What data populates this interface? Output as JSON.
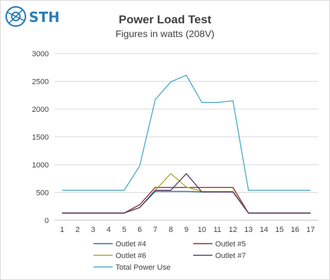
{
  "logo": {
    "text": "STH"
  },
  "chart_data": {
    "type": "line",
    "title": "Power Load Test",
    "subtitle": "Figures in watts (208V)",
    "xlabel": "",
    "ylabel": "",
    "x": [
      1,
      2,
      3,
      4,
      5,
      6,
      7,
      8,
      9,
      10,
      11,
      12,
      13,
      14,
      15,
      16,
      17
    ],
    "ylim": [
      0,
      3000
    ],
    "yticks": [
      0,
      500,
      1000,
      1500,
      2000,
      2500,
      3000
    ],
    "grid": true,
    "legend": "bottom",
    "series": [
      {
        "name": "Outlet #4",
        "color": "#1f7391",
        "values": [
          130,
          130,
          130,
          130,
          130,
          230,
          520,
          520,
          520,
          510,
          510,
          510,
          130,
          130,
          130,
          130,
          130
        ]
      },
      {
        "name": "Outlet #5",
        "color": "#8b2e2a",
        "values": [
          130,
          130,
          130,
          130,
          130,
          280,
          590,
          590,
          590,
          590,
          590,
          590,
          130,
          130,
          130,
          130,
          130
        ]
      },
      {
        "name": "Outlet #6",
        "color": "#a9a63a",
        "values": [
          130,
          130,
          130,
          130,
          130,
          230,
          540,
          840,
          600,
          520,
          520,
          520,
          130,
          130,
          130,
          130,
          130
        ]
      },
      {
        "name": "Outlet #7",
        "color": "#5e3a6b",
        "values": [
          130,
          130,
          130,
          130,
          130,
          230,
          540,
          540,
          840,
          510,
          510,
          510,
          130,
          130,
          130,
          130,
          130
        ]
      },
      {
        "name": "Total Power Use",
        "color": "#4bacc6",
        "values": [
          540,
          540,
          540,
          540,
          540,
          980,
          2170,
          2490,
          2610,
          2120,
          2120,
          2150,
          540,
          540,
          540,
          540,
          540
        ]
      }
    ]
  }
}
